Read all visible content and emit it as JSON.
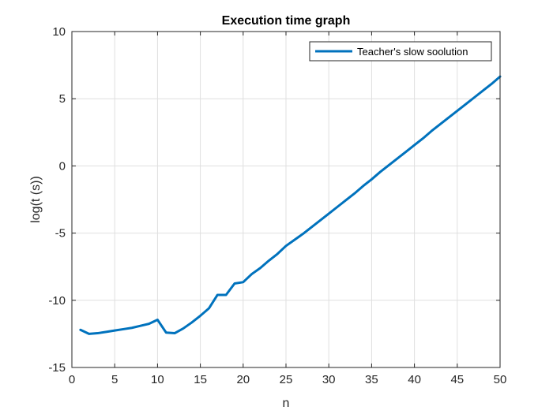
{
  "chart_data": {
    "type": "line",
    "title": "Execution time graph",
    "xlabel": "n",
    "ylabel": "log(t (s))",
    "xlim": [
      0,
      50
    ],
    "ylim": [
      -15,
      10
    ],
    "xticks": [
      0,
      5,
      10,
      15,
      20,
      25,
      30,
      35,
      40,
      45,
      50
    ],
    "yticks": [
      -15,
      -10,
      -5,
      0,
      5,
      10
    ],
    "grid": true,
    "legend_position": "top-right",
    "series": [
      {
        "name": "Teacher's slow soolution",
        "color": "#0072BD",
        "x": [
          1,
          2,
          3,
          4,
          5,
          6,
          7,
          8,
          9,
          10,
          11,
          12,
          13,
          14,
          15,
          16,
          17,
          18,
          19,
          20,
          21,
          22,
          23,
          24,
          25,
          26,
          27,
          28,
          29,
          30,
          31,
          32,
          33,
          34,
          35,
          36,
          37,
          38,
          39,
          40,
          41,
          42,
          43,
          44,
          45,
          46,
          47,
          48,
          49,
          50
        ],
        "y": [
          -12.2,
          -12.5,
          -12.45,
          -12.35,
          -12.25,
          -12.15,
          -12.05,
          -11.9,
          -11.75,
          -11.45,
          -12.4,
          -12.45,
          -12.1,
          -11.65,
          -11.15,
          -10.6,
          -9.6,
          -9.6,
          -8.75,
          -8.65,
          -8.05,
          -7.6,
          -7.05,
          -6.55,
          -5.95,
          -5.5,
          -5.05,
          -4.55,
          -4.05,
          -3.55,
          -3.05,
          -2.55,
          -2.05,
          -1.5,
          -1.0,
          -0.45,
          0.05,
          0.55,
          1.05,
          1.55,
          2.05,
          2.6,
          3.1,
          3.6,
          4.1,
          4.6,
          5.1,
          5.6,
          6.1,
          6.65
        ]
      }
    ]
  }
}
